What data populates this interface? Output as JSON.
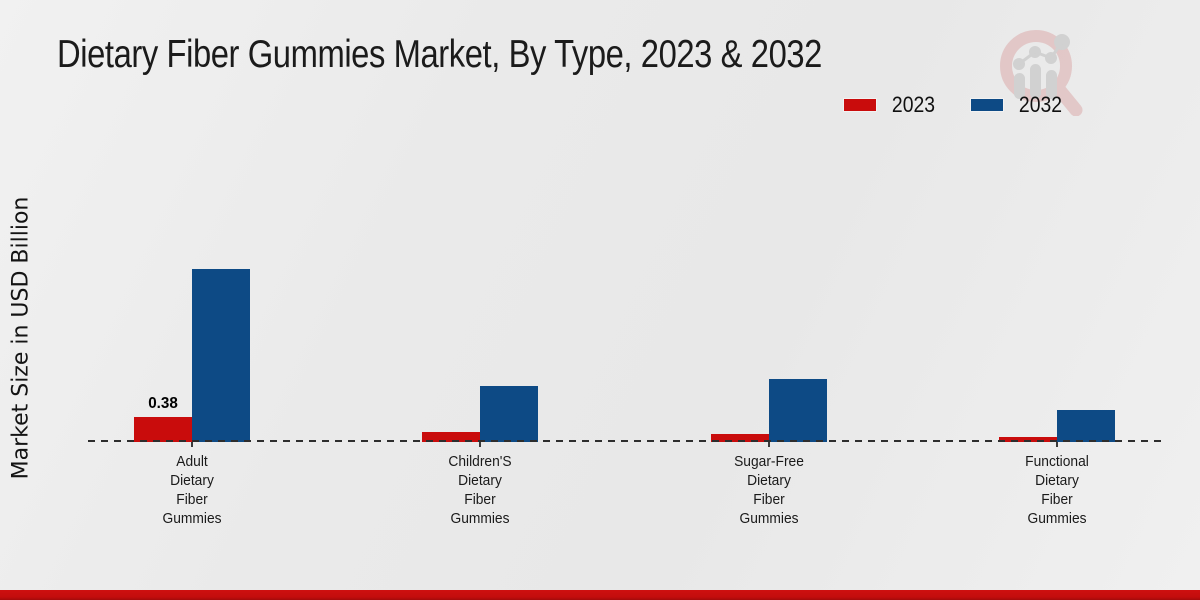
{
  "page_title": "Dietary Fiber Gummies Market, By Type, 2023 & 2032",
  "watermark_icon": "magnifier-growth-chart-logo",
  "colors": {
    "series_2023": "#c90c0c",
    "series_2032": "#0d4a85",
    "axis": "#2d2d2d",
    "bottom_accent_bar": "#c30d0d",
    "background": "#eaeaea"
  },
  "chart_data": {
    "type": "bar",
    "title": "Dietary Fiber Gummies Market, By Type, 2023 & 2032",
    "xlabel": "",
    "ylabel": "Market Size in USD Billion",
    "categories": [
      "Adult Dietary Fiber Gummies",
      "Children'S Dietary Fiber Gummies",
      "Sugar-Free Dietary Fiber Gummies",
      "Functional Dietary Fiber Gummies"
    ],
    "series": [
      {
        "name": "2023",
        "color": "#c90c0c",
        "values": [
          0.38,
          0.15,
          0.12,
          0.07
        ],
        "value_labels": [
          "0.38",
          "",
          "",
          ""
        ]
      },
      {
        "name": "2032",
        "color": "#0d4a85",
        "values": [
          2.65,
          0.86,
          0.96,
          0.49
        ],
        "value_labels": [
          "",
          "",
          "",
          ""
        ]
      }
    ],
    "ylim": [
      0,
      2.8
    ],
    "y_tick_labels_visible": false,
    "grid": false,
    "baseline_style": "dashed",
    "legend_position": "top-right"
  }
}
